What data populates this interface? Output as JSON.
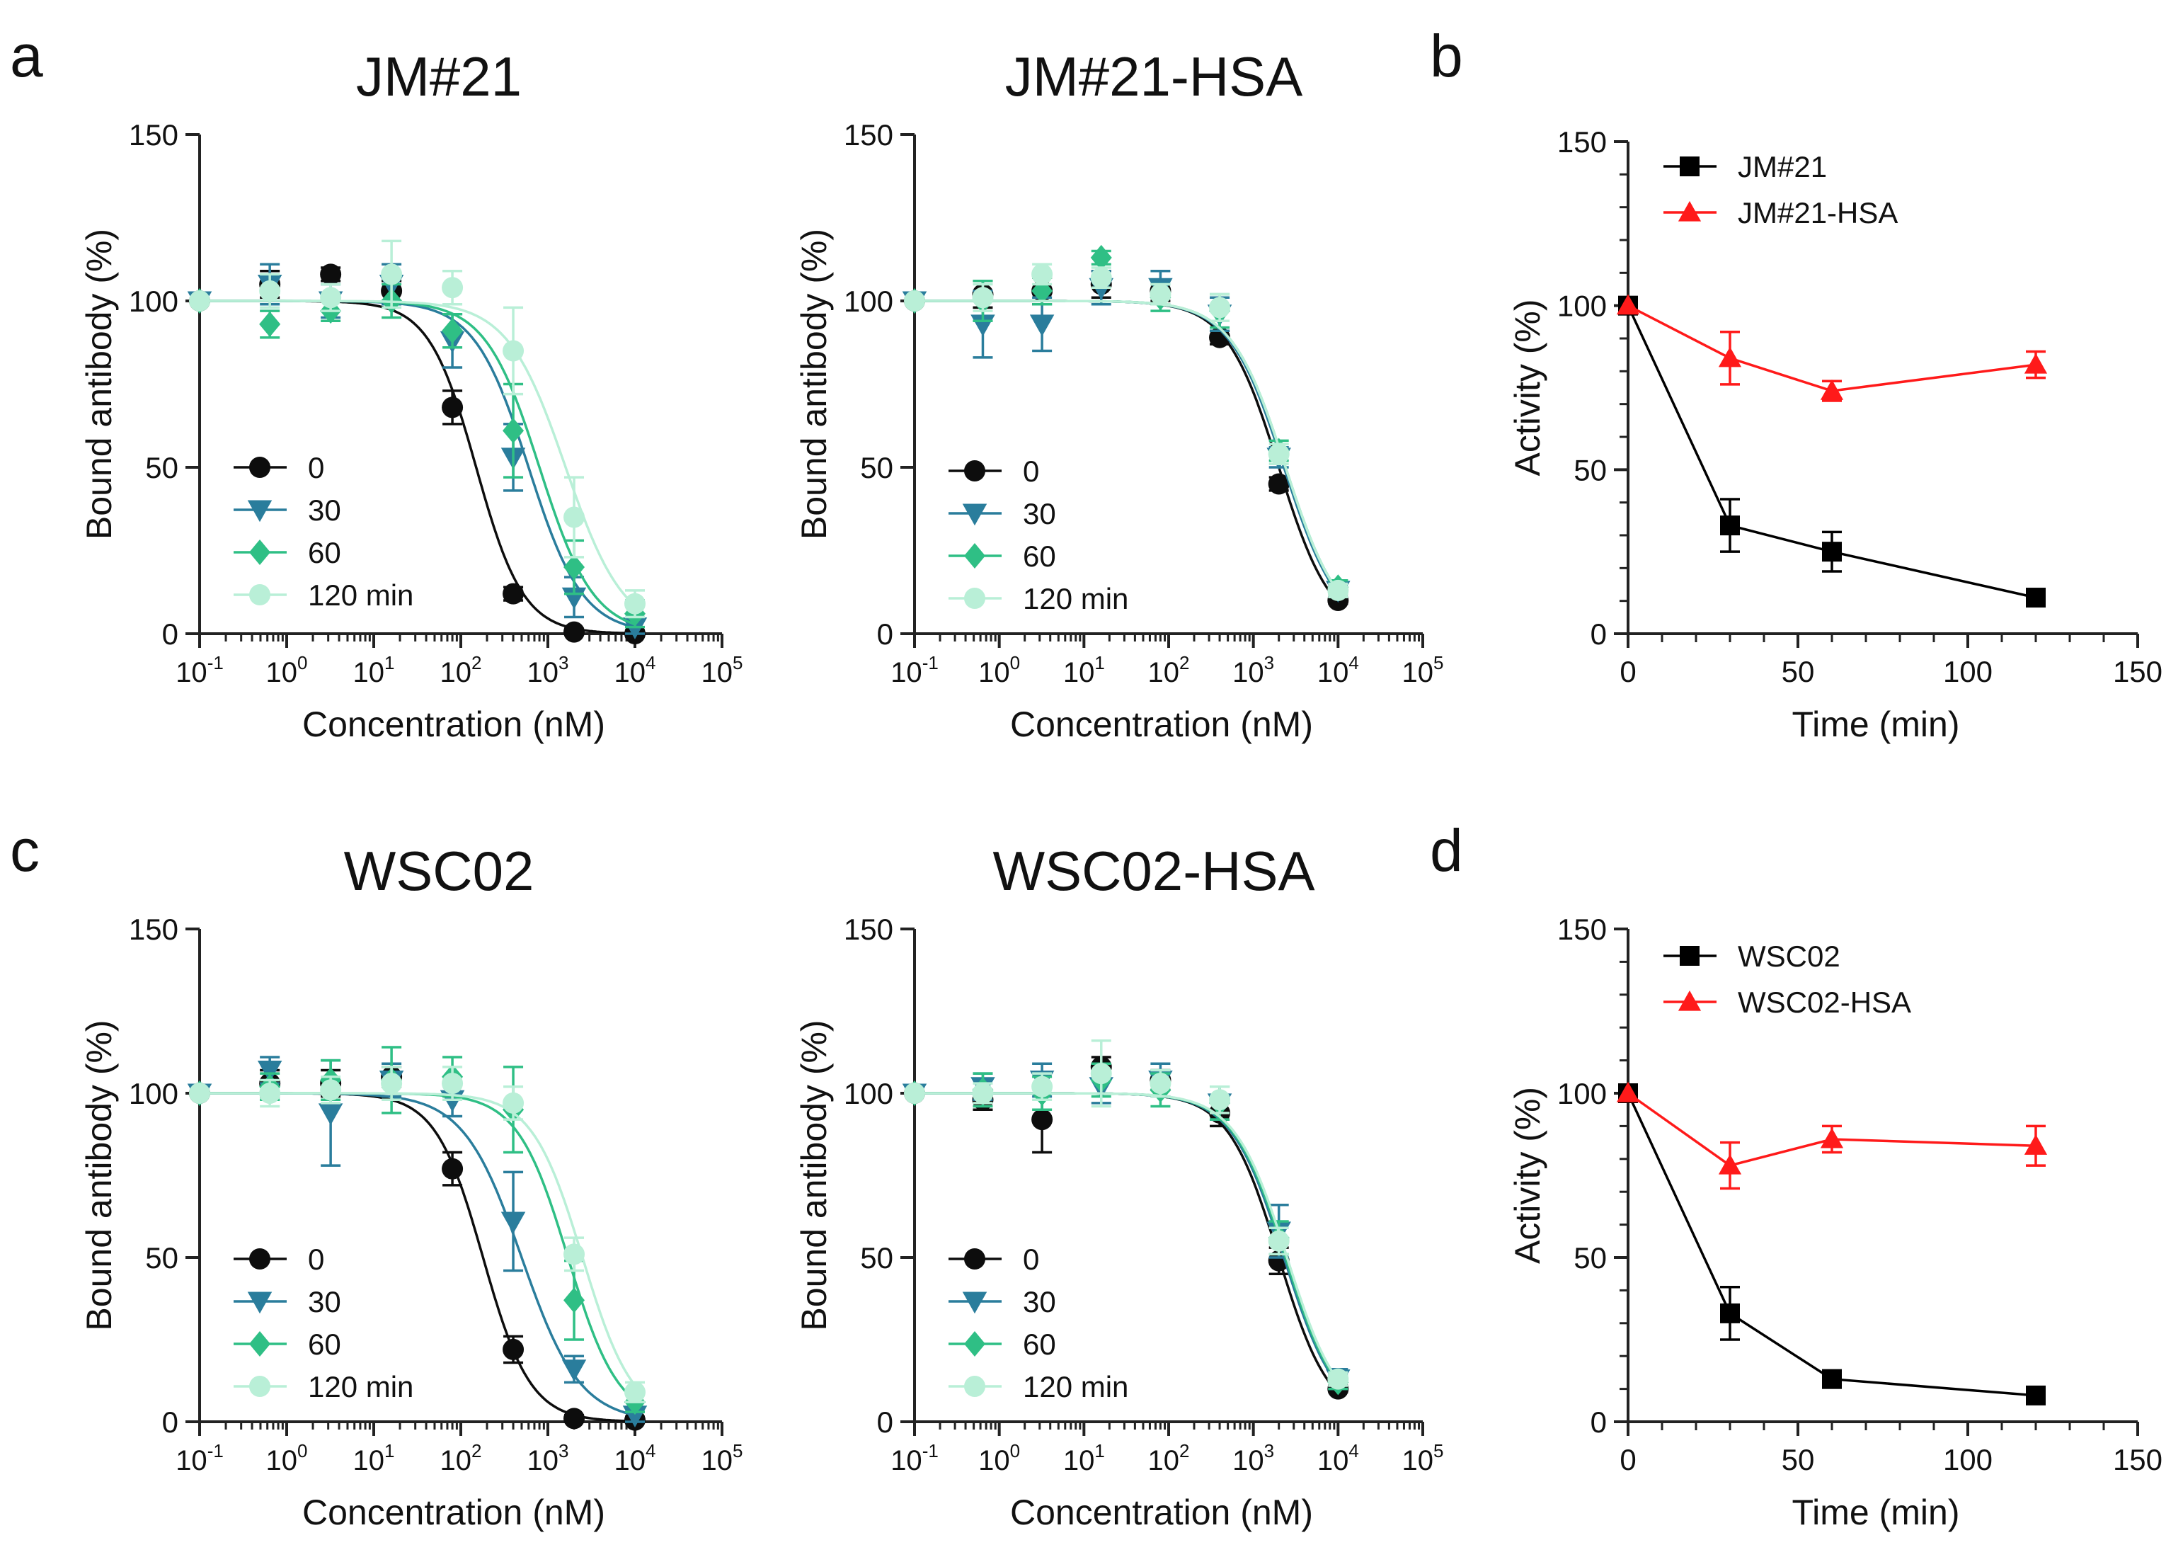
{
  "figure_labels": [
    "a",
    "b",
    "c",
    "d"
  ],
  "colors": {
    "t0": "#0d0d0d",
    "t30": "#2a7d9c",
    "t60": "#2fbf85",
    "t120": "#b9efd7",
    "free": "#000000",
    "hsa": "#ff1a1a"
  },
  "chart_data": [
    {
      "id": "a-left",
      "type": "line",
      "title": "JM#21",
      "xlabel": "Concentration (nM)",
      "ylabel": "Bound antibody  (%)",
      "xscale": "log",
      "xlim": [
        0.1,
        100000
      ],
      "ylim": [
        0,
        150
      ],
      "xticks": [
        {
          "base": "10",
          "exp": "-1"
        },
        {
          "base": "10",
          "exp": "0"
        },
        {
          "base": "10",
          "exp": "1"
        },
        {
          "base": "10",
          "exp": "2"
        },
        {
          "base": "10",
          "exp": "3"
        },
        {
          "base": "10",
          "exp": "4"
        },
        {
          "base": "10",
          "exp": "5"
        }
      ],
      "yticks": [
        "0",
        "50",
        "100",
        "150"
      ],
      "legend_position": "bottom-left",
      "series": [
        {
          "name": "0",
          "marker": "circle",
          "ic50": 150,
          "hill": 1.6,
          "x": [
            0.1,
            0.64,
            3.2,
            16,
            80,
            400,
            2000,
            10000
          ],
          "y": [
            100,
            105,
            108,
            103,
            68,
            12,
            0.5,
            0
          ],
          "err": [
            1,
            4,
            2,
            3,
            5,
            2,
            1,
            1
          ]
        },
        {
          "name": "30",
          "marker": "triangle-down",
          "ic50": 600,
          "hill": 1.4,
          "x": [
            0.1,
            0.64,
            3.2,
            16,
            80,
            400,
            2000,
            10000
          ],
          "y": [
            100,
            105,
            100,
            105,
            88,
            53,
            11,
            2
          ],
          "err": [
            1,
            6,
            5,
            6,
            8,
            10,
            6,
            3
          ]
        },
        {
          "name": "60",
          "marker": "diamond",
          "ic50": 800,
          "hill": 1.4,
          "x": [
            0.1,
            0.64,
            3.2,
            16,
            80,
            400,
            2000,
            10000
          ],
          "y": [
            100,
            93,
            97,
            100,
            91,
            61,
            20,
            6
          ],
          "err": [
            1,
            4,
            3,
            5,
            5,
            14,
            8,
            4
          ]
        },
        {
          "name": "120 min",
          "marker": "circle",
          "ic50": 1600,
          "hill": 1.3,
          "x": [
            0.1,
            0.64,
            3.2,
            16,
            80,
            400,
            2000,
            10000
          ],
          "y": [
            100,
            103,
            101,
            108,
            104,
            85,
            35,
            9
          ],
          "err": [
            1,
            5,
            4,
            10,
            5,
            13,
            12,
            4
          ]
        }
      ]
    },
    {
      "id": "a-right",
      "type": "line",
      "title": "JM#21-HSA",
      "xlabel": "Concentration (nM)",
      "ylabel": "Bound antibody  (%)",
      "xscale": "log",
      "xlim": [
        0.1,
        100000
      ],
      "ylim": [
        0,
        150
      ],
      "xticks": [
        {
          "base": "10",
          "exp": "-1"
        },
        {
          "base": "10",
          "exp": "0"
        },
        {
          "base": "10",
          "exp": "1"
        },
        {
          "base": "10",
          "exp": "2"
        },
        {
          "base": "10",
          "exp": "3"
        },
        {
          "base": "10",
          "exp": "4"
        },
        {
          "base": "10",
          "exp": "5"
        }
      ],
      "yticks": [
        "0",
        "50",
        "100",
        "150"
      ],
      "legend_position": "bottom-left",
      "series": [
        {
          "name": "0",
          "marker": "circle",
          "ic50": 2000,
          "hill": 1.4,
          "x": [
            0.1,
            0.64,
            3.2,
            16,
            80,
            400,
            2000,
            10000
          ],
          "y": [
            100,
            102,
            103,
            105,
            103,
            89,
            45,
            10
          ],
          "err": [
            1,
            4,
            4,
            4,
            3,
            2,
            2,
            1
          ]
        },
        {
          "name": "30",
          "marker": "triangle-down",
          "ic50": 2300,
          "hill": 1.35,
          "x": [
            0.1,
            0.64,
            3.2,
            16,
            80,
            400,
            2000,
            10000
          ],
          "y": [
            100,
            93,
            93,
            104,
            104,
            96,
            53,
            13
          ],
          "err": [
            1,
            10,
            8,
            5,
            5,
            5,
            3,
            2
          ]
        },
        {
          "name": "60",
          "marker": "diamond",
          "ic50": 2400,
          "hill": 1.35,
          "x": [
            0.1,
            0.64,
            3.2,
            16,
            80,
            400,
            2000,
            10000
          ],
          "y": [
            100,
            100,
            103,
            113,
            101,
            97,
            55,
            14
          ],
          "err": [
            1,
            6,
            4,
            2,
            4,
            5,
            3,
            2
          ]
        },
        {
          "name": "120 min",
          "marker": "circle",
          "ic50": 2400,
          "hill": 1.35,
          "x": [
            0.1,
            0.64,
            3.2,
            16,
            80,
            400,
            2000,
            10000
          ],
          "y": [
            100,
            101,
            108,
            107,
            102,
            98,
            54,
            13
          ],
          "err": [
            1,
            4,
            3,
            3,
            3,
            4,
            3,
            2
          ]
        }
      ]
    },
    {
      "id": "b",
      "type": "line",
      "title": "",
      "xlabel": "Time (min)",
      "ylabel": "Activity (%)",
      "xlim": [
        0,
        150
      ],
      "ylim": [
        0,
        150
      ],
      "xticks": [
        "0",
        "50",
        "100",
        "150"
      ],
      "yticks": [
        "0",
        "50",
        "100",
        "150"
      ],
      "legend_position": "top-left",
      "series": [
        {
          "name": "JM#21",
          "marker": "square",
          "x": [
            0,
            30,
            60,
            120
          ],
          "y": [
            100,
            33,
            25,
            11
          ],
          "err": [
            0,
            8,
            6,
            2
          ]
        },
        {
          "name": "JM#21-HSA",
          "marker": "triangle-up",
          "x": [
            0,
            30,
            60,
            120
          ],
          "y": [
            100,
            84,
            74,
            82
          ],
          "err": [
            0,
            8,
            3,
            4
          ]
        }
      ]
    },
    {
      "id": "c-left",
      "type": "line",
      "title": "WSC02",
      "xlabel": "Concentration (nM)",
      "ylabel": "Bound antibody  (%)",
      "xscale": "log",
      "xlim": [
        0.1,
        100000
      ],
      "ylim": [
        0,
        150
      ],
      "xticks": [
        {
          "base": "10",
          "exp": "-1"
        },
        {
          "base": "10",
          "exp": "0"
        },
        {
          "base": "10",
          "exp": "1"
        },
        {
          "base": "10",
          "exp": "2"
        },
        {
          "base": "10",
          "exp": "3"
        },
        {
          "base": "10",
          "exp": "4"
        },
        {
          "base": "10",
          "exp": "5"
        }
      ],
      "yticks": [
        "0",
        "50",
        "100",
        "150"
      ],
      "legend_position": "bottom-left",
      "series": [
        {
          "name": "0",
          "marker": "circle",
          "ic50": 180,
          "hill": 1.6,
          "x": [
            0.1,
            0.64,
            3.2,
            16,
            80,
            400,
            2000,
            10000
          ],
          "y": [
            100,
            103,
            103,
            105,
            77,
            22,
            1,
            0.5
          ],
          "err": [
            1,
            4,
            4,
            3,
            5,
            4,
            1,
            1
          ]
        },
        {
          "name": "30",
          "marker": "triangle-down",
          "ic50": 500,
          "hill": 1.3,
          "x": [
            0.1,
            0.64,
            3.2,
            16,
            80,
            400,
            2000,
            10000
          ],
          "y": [
            100,
            107,
            94,
            104,
            98,
            61,
            16,
            2
          ],
          "err": [
            1,
            4,
            16,
            5,
            5,
            15,
            4,
            2
          ]
        },
        {
          "name": "60",
          "marker": "diamond",
          "ic50": 1700,
          "hill": 1.5,
          "x": [
            0.1,
            0.64,
            3.2,
            16,
            80,
            400,
            2000,
            10000
          ],
          "y": [
            100,
            102,
            104,
            104,
            105,
            95,
            37,
            6
          ],
          "err": [
            1,
            4,
            6,
            10,
            6,
            13,
            12,
            3
          ]
        },
        {
          "name": "120 min",
          "marker": "circle",
          "ic50": 2500,
          "hill": 1.5,
          "x": [
            0.1,
            0.64,
            3.2,
            16,
            80,
            400,
            2000,
            10000
          ],
          "y": [
            100,
            100,
            101,
            103,
            103,
            97,
            51,
            9
          ],
          "err": [
            1,
            4,
            4,
            5,
            5,
            5,
            5,
            3
          ]
        }
      ]
    },
    {
      "id": "c-right",
      "type": "line",
      "title": "WSC02-HSA",
      "xlabel": "Concentration (nM)",
      "ylabel": "Bound antibody  (%)",
      "xscale": "log",
      "xlim": [
        0.1,
        100000
      ],
      "ylim": [
        0,
        150
      ],
      "xticks": [
        {
          "base": "10",
          "exp": "-1"
        },
        {
          "base": "10",
          "exp": "0"
        },
        {
          "base": "10",
          "exp": "1"
        },
        {
          "base": "10",
          "exp": "2"
        },
        {
          "base": "10",
          "exp": "3"
        },
        {
          "base": "10",
          "exp": "4"
        },
        {
          "base": "10",
          "exp": "5"
        }
      ],
      "yticks": [
        "0",
        "50",
        "100",
        "150"
      ],
      "legend_position": "bottom-left",
      "series": [
        {
          "name": "0",
          "marker": "circle",
          "ic50": 2000,
          "hill": 1.45,
          "x": [
            0.1,
            0.64,
            3.2,
            16,
            80,
            400,
            2000,
            10000
          ],
          "y": [
            100,
            98,
            92,
            108,
            104,
            94,
            49,
            10
          ],
          "err": [
            1,
            3,
            10,
            3,
            3,
            4,
            4,
            1
          ]
        },
        {
          "name": "30",
          "marker": "triangle-down",
          "ic50": 2300,
          "hill": 1.4,
          "x": [
            0.1,
            0.64,
            3.2,
            16,
            80,
            400,
            2000,
            10000
          ],
          "y": [
            100,
            102,
            104,
            102,
            104,
            97,
            58,
            13
          ],
          "err": [
            1,
            4,
            5,
            5,
            5,
            5,
            8,
            3
          ]
        },
        {
          "name": "60",
          "marker": "diamond",
          "ic50": 2400,
          "hill": 1.4,
          "x": [
            0.1,
            0.64,
            3.2,
            16,
            80,
            400,
            2000,
            10000
          ],
          "y": [
            100,
            101,
            100,
            104,
            101,
            97,
            56,
            12
          ],
          "err": [
            1,
            5,
            5,
            5,
            5,
            5,
            5,
            2
          ]
        },
        {
          "name": "120 min",
          "marker": "circle",
          "ic50": 2500,
          "hill": 1.4,
          "x": [
            0.1,
            0.64,
            3.2,
            16,
            80,
            400,
            2000,
            10000
          ],
          "y": [
            100,
            100,
            102,
            106,
            103,
            98,
            55,
            13
          ],
          "err": [
            1,
            3,
            4,
            10,
            4,
            4,
            4,
            2
          ]
        }
      ]
    },
    {
      "id": "d",
      "type": "line",
      "title": "",
      "xlabel": "Time (min)",
      "ylabel": "Activity (%)",
      "xlim": [
        0,
        150
      ],
      "ylim": [
        0,
        150
      ],
      "xticks": [
        "0",
        "50",
        "100",
        "150"
      ],
      "yticks": [
        "0",
        "50",
        "100",
        "150"
      ],
      "legend_position": "top-left",
      "series": [
        {
          "name": "WSC02",
          "marker": "square",
          "x": [
            0,
            30,
            60,
            120
          ],
          "y": [
            100,
            33,
            13,
            8
          ],
          "err": [
            0,
            8,
            2,
            2
          ]
        },
        {
          "name": "WSC02-HSA",
          "marker": "triangle-up",
          "x": [
            0,
            30,
            60,
            120
          ],
          "y": [
            100,
            78,
            86,
            84
          ],
          "err": [
            0,
            7,
            4,
            6
          ]
        }
      ]
    }
  ]
}
